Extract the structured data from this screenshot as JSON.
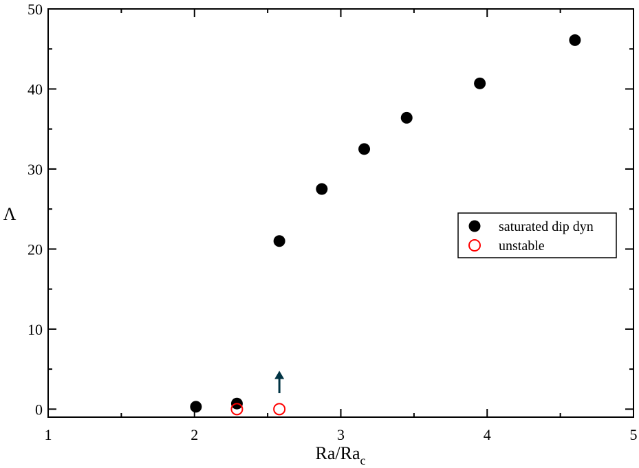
{
  "chart_data": {
    "type": "scatter",
    "xlabel": "Ra/Ra",
    "xlabel_sub": "c",
    "ylabel": "Λ",
    "xlim": [
      1,
      5
    ],
    "ylim": [
      -1,
      50
    ],
    "x_ticks": [
      "1",
      "2",
      "3",
      "4",
      "5"
    ],
    "y_ticks": [
      "0",
      "10",
      "20",
      "30",
      "40",
      "50"
    ],
    "grid": false,
    "legend_position": "right",
    "series": [
      {
        "name": "saturated dip dyn",
        "marker": "filled-circle",
        "color": "#000000",
        "points": [
          [
            2.01,
            0.3
          ],
          [
            2.29,
            0.7
          ],
          [
            2.58,
            21.0
          ],
          [
            2.87,
            27.5
          ],
          [
            3.16,
            32.5
          ],
          [
            3.45,
            36.4
          ],
          [
            3.95,
            40.7
          ],
          [
            4.6,
            46.1
          ]
        ]
      },
      {
        "name": "unstable",
        "marker": "open-circle",
        "color": "#ff0000",
        "points": [
          [
            2.29,
            0.0
          ],
          [
            2.58,
            0.0
          ]
        ]
      }
    ],
    "annotations": [
      {
        "type": "arrow",
        "direction": "up",
        "x": 2.58,
        "y_from": 2.0,
        "y_to": 4.8,
        "color": "#003344"
      }
    ]
  }
}
